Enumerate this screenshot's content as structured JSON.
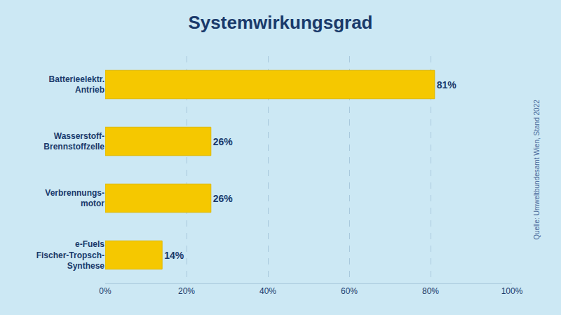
{
  "chart_data": {
    "type": "bar",
    "orientation": "horizontal",
    "title": "Systemwirkungsgrad",
    "categories": [
      "Batterieelektr.\nAntrieb",
      "Wasserstoff-\nBrennstoffzelle",
      "Verbrennungs-\nmotor",
      "e-Fuels\nFischer-Tropsch-\nSynthese"
    ],
    "values": [
      81,
      26,
      26,
      14
    ],
    "value_labels": [
      "81%",
      "26%",
      "26%",
      "14%"
    ],
    "data_labels": true,
    "color": "#f5c800",
    "xlim": [
      0,
      100
    ],
    "xticks": [
      {
        "value": 0,
        "label": "0%"
      },
      {
        "value": 20,
        "label": "20%"
      },
      {
        "value": 40,
        "label": "40%"
      },
      {
        "value": 60,
        "label": "60%"
      },
      {
        "value": 80,
        "label": "80%"
      },
      {
        "value": 100,
        "label": "100%"
      }
    ],
    "grid": true,
    "annotations": [
      "Quelle: Umweltbundesamt Wien, Stand 2022"
    ]
  }
}
